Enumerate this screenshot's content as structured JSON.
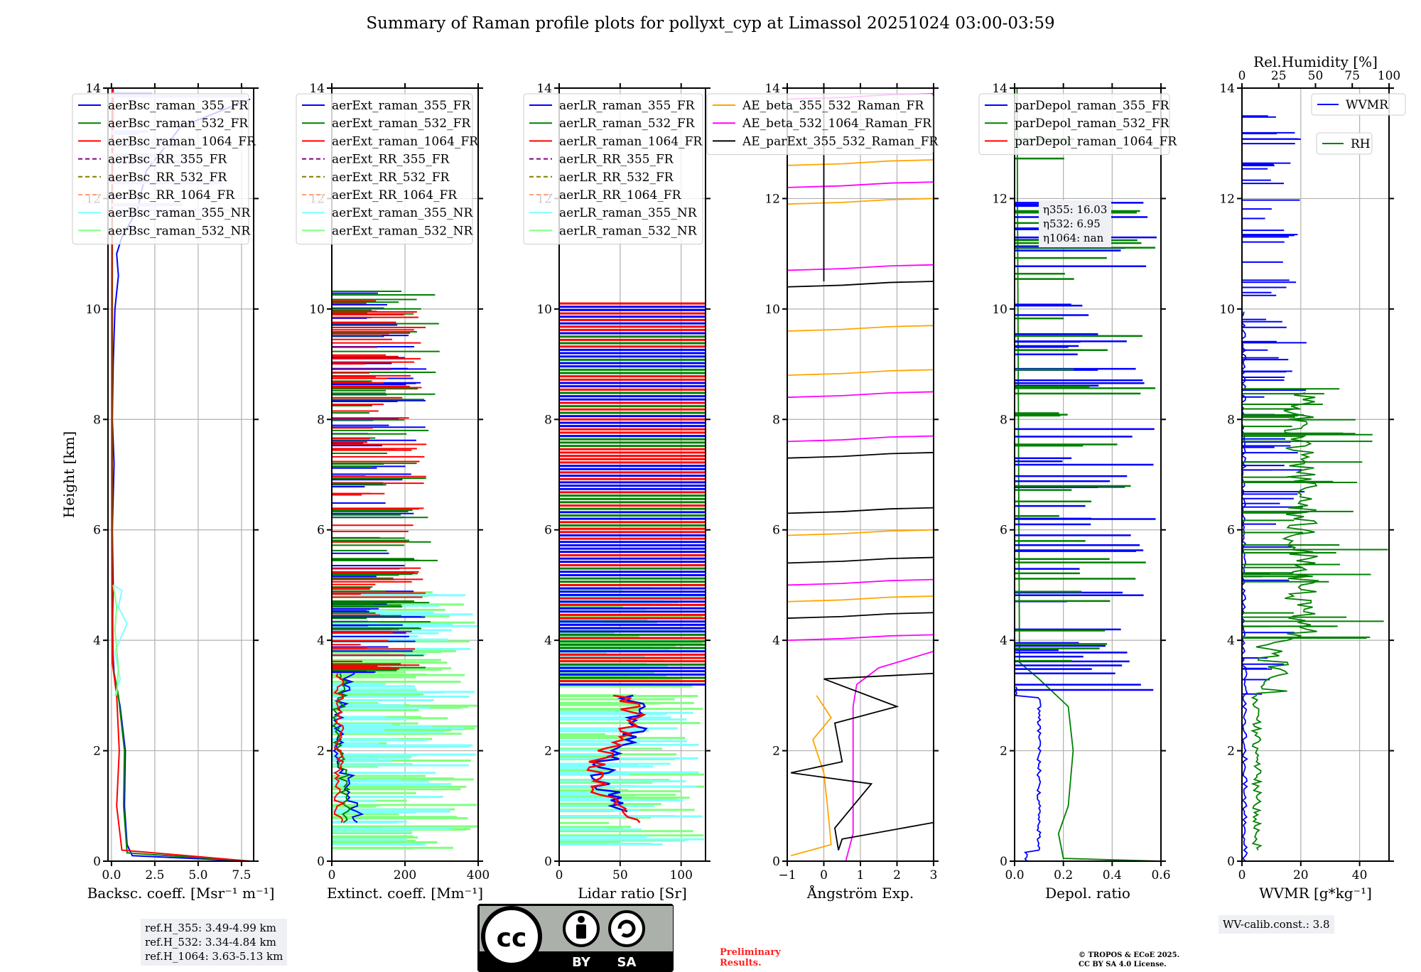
{
  "title": "Summary of Raman profile plots for pollyxt_cyp at Limassol 20251024 03:00-03:59",
  "shared_ylabel": "Height [km]",
  "ref_heights": [
    "ref.H_355: 3.49-4.99 km",
    "ref.H_532: 3.34-4.84 km",
    "ref.H_1064: 3.63-5.13 km"
  ],
  "eta_box": [
    "η355: 16.03",
    "η532: 6.95",
    "η1064: nan"
  ],
  "wv_calib": "WV-calib.const.: 3.8",
  "preliminary": [
    "Preliminary",
    "Results."
  ],
  "copyright": [
    "© TROPOS & ECoE 2025.",
    "CC BY SA 4.0 License."
  ],
  "cc_badge": {
    "by": "BY",
    "sa": "SA"
  },
  "colors": {
    "b355": "#0000ff",
    "g532": "#008000",
    "r1064": "#ff0000",
    "rr355": "#800080",
    "rr532": "#808000",
    "rr1064": "#ffa07a",
    "nr355": "#7fffff",
    "nr532": "#80ff80",
    "orange": "#ffa500",
    "magenta": "#ff00ff",
    "black": "#000000"
  },
  "chart_data": [
    {
      "type": "line",
      "id": "bsc",
      "xlabel": "Backsc. coeff. [Msr⁻¹ m⁻¹]",
      "ylabel": "Height [km]",
      "xlim": [
        -0.2,
        8.2
      ],
      "ylim": [
        0,
        14
      ],
      "xticks": [
        "0.0",
        "2.5",
        "5.0",
        "7.5"
      ],
      "xtickvals": [
        0,
        2.5,
        5,
        7.5
      ],
      "yticks": [
        0,
        2,
        4,
        6,
        8,
        10,
        12,
        14
      ],
      "grid": true,
      "legend": "top-left",
      "legend_entries": [
        "aerBsc_raman_355_FR",
        "aerBsc_raman_532_FR",
        "aerBsc_raman_1064_FR",
        "aerBsc_RR_355_FR",
        "aerBsc_RR_532_FR",
        "aerBsc_RR_1064_FR",
        "aerBsc_raman_355_NR",
        "aerBsc_raman_532_NR"
      ],
      "series": [
        {
          "name": "aerBsc_raman_355_FR",
          "color": "#0000ff",
          "points": [
            [
              8,
              0
            ],
            [
              1.2,
              0.1
            ],
            [
              0.9,
              0.3
            ],
            [
              0.75,
              1
            ],
            [
              0.8,
              2
            ],
            [
              0.5,
              2.8
            ],
            [
              0.15,
              3.4
            ],
            [
              0.05,
              4
            ],
            [
              0.1,
              5
            ],
            [
              0.05,
              6
            ],
            [
              0.15,
              7.2
            ],
            [
              0.05,
              8
            ],
            [
              0.1,
              9
            ],
            [
              0.2,
              10
            ],
            [
              0.4,
              10.6
            ],
            [
              0.3,
              11
            ],
            [
              0.6,
              11.3
            ],
            [
              1.5,
              11.8
            ],
            [
              2,
              12.5
            ],
            [
              4,
              13.3
            ],
            [
              8,
              13.8
            ]
          ]
        },
        {
          "name": "aerBsc_raman_532_FR",
          "color": "#008000",
          "points": [
            [
              8,
              0
            ],
            [
              0.9,
              0.15
            ],
            [
              0.7,
              1
            ],
            [
              0.75,
              2
            ],
            [
              0.4,
              3
            ],
            [
              0.1,
              3.5
            ],
            [
              0.05,
              5
            ],
            [
              0.05,
              8
            ],
            [
              0.05,
              12
            ],
            [
              0.1,
              14
            ]
          ]
        },
        {
          "name": "aerBsc_raman_1064_FR",
          "color": "#ff0000",
          "points": [
            [
              8,
              0
            ],
            [
              0.6,
              0.2
            ],
            [
              0.3,
              1
            ],
            [
              0.45,
              2
            ],
            [
              0.3,
              3
            ],
            [
              0.05,
              3.6
            ],
            [
              0.02,
              6
            ],
            [
              0.02,
              10
            ],
            [
              0.05,
              14
            ]
          ]
        },
        {
          "name": "aerBsc_raman_355_NR",
          "color": "#7fffff",
          "points": [
            [
              0.2,
              3
            ],
            [
              0.5,
              3.3
            ],
            [
              0.2,
              3.8
            ],
            [
              0.9,
              4.3
            ],
            [
              0.4,
              4.6
            ],
            [
              0.6,
              4.9
            ],
            [
              0.1,
              5
            ]
          ]
        },
        {
          "name": "aerBsc_raman_532_NR",
          "color": "#80ff80",
          "points": [
            [
              0.3,
              3
            ],
            [
              0.4,
              3.5
            ],
            [
              0.2,
              4.2
            ],
            [
              0.3,
              4.6
            ],
            [
              0.1,
              5
            ]
          ]
        }
      ]
    },
    {
      "type": "line",
      "id": "ext",
      "xlabel": "Extinct. coeff. [Mm⁻¹]",
      "xlim": [
        0,
        400
      ],
      "ylim": [
        0,
        14
      ],
      "xticks": [
        "0",
        "200",
        "400"
      ],
      "xtickvals": [
        0,
        200,
        400
      ],
      "yticks": [
        0,
        2,
        4,
        6,
        8,
        10,
        12,
        14
      ],
      "grid": true,
      "legend": "top-left",
      "legend_entries": [
        "aerExt_raman_355_FR",
        "aerExt_raman_532_FR",
        "aerExt_raman_1064_FR",
        "aerExt_RR_355_FR",
        "aerExt_RR_532_FR",
        "aerExt_RR_1064_FR",
        "aerExt_raman_355_NR",
        "aerExt_raman_532_NR"
      ]
    },
    {
      "type": "line",
      "id": "lr",
      "xlabel": "Lidar ratio [Sr]",
      "xlim": [
        0,
        120
      ],
      "ylim": [
        0,
        14
      ],
      "xticks": [
        "0",
        "50",
        "100"
      ],
      "xtickvals": [
        0,
        50,
        100
      ],
      "yticks": [
        0,
        2,
        4,
        6,
        8,
        10,
        12,
        14
      ],
      "grid": true,
      "legend": "top-left",
      "legend_entries": [
        "aerLR_raman_355_FR",
        "aerLR_raman_532_FR",
        "aerLR_raman_1064_FR",
        "aerLR_RR_355_FR",
        "aerLR_RR_532_FR",
        "aerLR_RR_1064_FR",
        "aerLR_raman_355_NR",
        "aerLR_raman_532_NR"
      ]
    },
    {
      "type": "line",
      "id": "ae",
      "xlabel": "Ångström Exp.",
      "xlim": [
        -1,
        3
      ],
      "ylim": [
        0,
        14
      ],
      "xticks": [
        "−1",
        "0",
        "1",
        "2",
        "3"
      ],
      "xtickvals": [
        -1,
        0,
        1,
        2,
        3
      ],
      "yticks": [
        0,
        2,
        4,
        6,
        8,
        10,
        12,
        14
      ],
      "grid": true,
      "legend": "top-left",
      "legend_entries": [
        "AE_beta_355_532_Raman_FR",
        "AE_beta_532_1064_Raman_FR",
        "AE_parExt_355_532_Raman_FR"
      ]
    },
    {
      "type": "line",
      "id": "depol",
      "xlabel": "Depol. ratio",
      "xlim": [
        0,
        0.6
      ],
      "ylim": [
        0,
        14
      ],
      "xticks": [
        "0.0",
        "0.2",
        "0.4",
        "0.6"
      ],
      "xtickvals": [
        0,
        0.2,
        0.4,
        0.6
      ],
      "yticks": [
        0,
        2,
        4,
        6,
        8,
        10,
        12,
        14
      ],
      "grid": true,
      "legend": "top-left",
      "legend_entries": [
        "parDepol_raman_355_FR",
        "parDepol_raman_532_FR",
        "parDepol_raman_1064_FR"
      ]
    },
    {
      "type": "line",
      "id": "wv",
      "xlabel": "WVMR [g*kg⁻¹]",
      "top_xlabel": "Rel.Humidity [%]",
      "xlim": [
        0,
        50
      ],
      "top_xlim": [
        0,
        100
      ],
      "ylim": [
        0,
        14
      ],
      "xticks": [
        "0",
        "20",
        "40"
      ],
      "xtickvals": [
        0,
        20,
        40
      ],
      "top_xticks": [
        "0",
        "25",
        "50",
        "75",
        "100"
      ],
      "top_xtickvals": [
        0,
        25,
        50,
        75,
        100
      ],
      "yticks": [
        0,
        2,
        4,
        6,
        8,
        10,
        12,
        14
      ],
      "grid": true,
      "legend_entries": [
        "WVMR",
        "RH"
      ]
    }
  ]
}
